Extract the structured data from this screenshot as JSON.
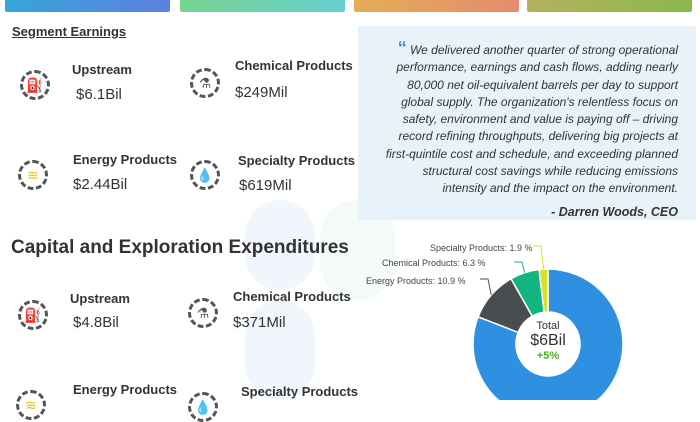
{
  "top_cards": [
    {
      "color": "#3aa3dc"
    },
    {
      "color": "#6fd0a8"
    },
    {
      "color": "#e2a457"
    },
    {
      "color": "#a8b85a"
    }
  ],
  "segment_earnings": {
    "title": "Segment Earnings",
    "items": [
      {
        "label": "Upstream",
        "value": "$6.1Bil",
        "icon": "oil-pump-icon"
      },
      {
        "label": "Chemical Products",
        "value": "$249Mil",
        "icon": "flask-icon"
      },
      {
        "label": "Energy Products",
        "value": "$2.44Bil",
        "icon": "waves-icon"
      },
      {
        "label": "Specialty Products",
        "value": "$619Mil",
        "icon": "drop-icon"
      }
    ]
  },
  "quote": {
    "text": "We delivered another quarter of strong operational performance, earnings and cash flows, adding nearly 80,000 net oil-equivalent barrels per day to support global supply. The organization's relentless focus on safety, environment and value is paying off – driving record refining throughputs, delivering big projects at first-quintile cost and schedule, and exceeding planned structural cost savings while reducing emissions intensity and the impact on the environment.",
    "author": "- Darren Woods, CEO"
  },
  "capex": {
    "title": "Capital and Exploration Expenditures",
    "items": [
      {
        "label": "Upstream",
        "value": "$4.8Bil",
        "icon": "oil-pump-icon"
      },
      {
        "label": "Chemical Products",
        "value": "$371Mil",
        "icon": "flask-icon"
      },
      {
        "label": "Energy Products",
        "value": "",
        "icon": "waves-icon"
      },
      {
        "label": "Specialty Products",
        "value": "",
        "icon": "drop-icon"
      }
    ]
  },
  "chart_data": {
    "type": "pie",
    "donut": true,
    "slices": [
      {
        "name": "Upstream",
        "value": 80.9,
        "color": "#2f8fe0",
        "label": ""
      },
      {
        "name": "Energy Products",
        "value": 10.9,
        "color": "#4a4d4f",
        "label": "Energy Products: 10.9 %"
      },
      {
        "name": "Chemical Products",
        "value": 6.3,
        "color": "#13b57f",
        "label": "Chemical Products: 6.3 %"
      },
      {
        "name": "Specialty Products",
        "value": 1.9,
        "color": "#d7e02a",
        "label": "Specialty Products: 1.9 %"
      }
    ],
    "center": {
      "title": "Total",
      "value": "$6Bil",
      "change": "+5%",
      "change_color": "#4caf20"
    }
  }
}
